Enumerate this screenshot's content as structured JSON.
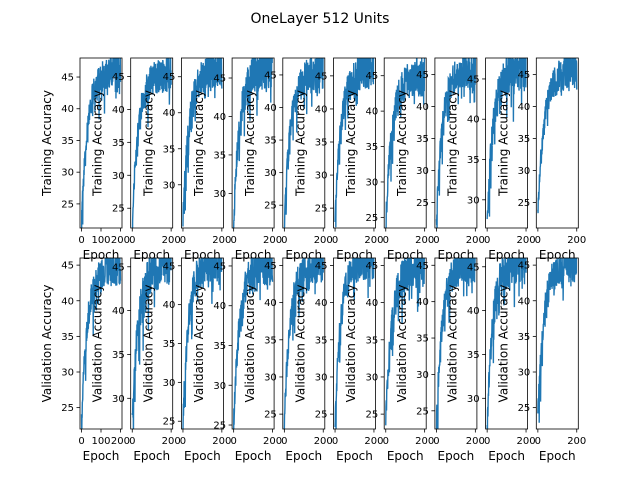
{
  "figure": {
    "title": "OneLayer 512 Units"
  },
  "chart_data": {
    "type": "line",
    "line_color": "#1f77b4",
    "x_ticks": [
      "0",
      "200"
    ],
    "x_ticks_first_panel": [
      "0",
      "100",
      "200"
    ],
    "xlim": [
      -8,
      208
    ],
    "rows": [
      {
        "ylabel": "Training Accuracy",
        "xlabel": "Epoch",
        "panels": [
          {
            "ylim": [
              21.2,
              48.0
            ],
            "yticks": [
              "25",
              "30",
              "35",
              "40",
              "45"
            ],
            "start": 22,
            "end": 44.5,
            "seed": 1
          },
          {
            "ylim": [
              22.0,
              47.8
            ],
            "yticks": [
              "25",
              "30",
              "35",
              "40",
              "45"
            ],
            "start": 23,
            "end": 44.0,
            "seed": 2
          },
          {
            "ylim": [
              24.0,
              47.6
            ],
            "yticks": [
              "30",
              "35",
              "40",
              "45"
            ],
            "start": 25,
            "end": 44.5,
            "seed": 3
          },
          {
            "ylim": [
              25.5,
              47.6
            ],
            "yticks": [
              "25",
              "30",
              "35",
              "40",
              "45"
            ],
            "start": 26,
            "end": 45.0,
            "seed": 4
          },
          {
            "ylim": [
              21.5,
              47.6
            ],
            "yticks": [
              "25",
              "30",
              "35",
              "40",
              "45"
            ],
            "start": 22,
            "end": 44.0,
            "seed": 5
          },
          {
            "ylim": [
              22.0,
              47.7
            ],
            "yticks": [
              "25",
              "30",
              "35",
              "40",
              "45"
            ],
            "start": 23,
            "end": 44.5,
            "seed": 6
          },
          {
            "ylim": [
              23.5,
              47.5
            ],
            "yticks": [
              "25",
              "30",
              "35",
              "40",
              "45"
            ],
            "start": 24,
            "end": 43.5,
            "seed": 7
          },
          {
            "ylim": [
              21.0,
              47.6
            ],
            "yticks": [
              "25",
              "30",
              "35",
              "40",
              "45"
            ],
            "start": 22,
            "end": 44.5,
            "seed": 8
          },
          {
            "ylim": [
              26.5,
              47.6
            ],
            "yticks": [
              "30",
              "35",
              "40",
              "45"
            ],
            "start": 27,
            "end": 45.0,
            "seed": 9
          },
          {
            "ylim": [
              21.0,
              47.6
            ],
            "yticks": [
              "25",
              "30",
              "35",
              "40",
              "45"
            ],
            "start": 23,
            "end": 44.0,
            "seed": 10
          }
        ]
      },
      {
        "ylabel": "Validation Accuracy",
        "xlabel": "Epoch",
        "panels": [
          {
            "ylim": [
              22.0,
              46.0
            ],
            "yticks": [
              "25",
              "30",
              "35",
              "40",
              "45"
            ],
            "start": 23,
            "end": 43.5,
            "seed": 11
          },
          {
            "ylim": [
              26.5,
              46.0
            ],
            "yticks": [
              "30",
              "35",
              "40",
              "45"
            ],
            "start": 27,
            "end": 44.0,
            "seed": 12
          },
          {
            "ylim": [
              24.0,
              46.0
            ],
            "yticks": [
              "25",
              "30",
              "35",
              "40",
              "45"
            ],
            "start": 25,
            "end": 44.5,
            "seed": 13
          },
          {
            "ylim": [
              24.5,
              46.0
            ],
            "yticks": [
              "25",
              "30",
              "35",
              "40",
              "45"
            ],
            "start": 25,
            "end": 44.0,
            "seed": 14
          },
          {
            "ylim": [
              23.0,
              46.0
            ],
            "yticks": [
              "25",
              "30",
              "35",
              "40",
              "45"
            ],
            "start": 24,
            "end": 44.0,
            "seed": 15
          },
          {
            "ylim": [
              23.0,
              46.0
            ],
            "yticks": [
              "25",
              "30",
              "35",
              "40",
              "45"
            ],
            "start": 24,
            "end": 44.5,
            "seed": 16
          },
          {
            "ylim": [
              23.0,
              46.0
            ],
            "yticks": [
              "25",
              "30",
              "35",
              "40",
              "45"
            ],
            "start": 24,
            "end": 43.5,
            "seed": 17
          },
          {
            "ylim": [
              22.5,
              46.0
            ],
            "yticks": [
              "25",
              "30",
              "35",
              "40",
              "45"
            ],
            "start": 23,
            "end": 44.0,
            "seed": 18
          },
          {
            "ylim": [
              26.5,
              46.0
            ],
            "yticks": [
              "30",
              "35",
              "40",
              "45"
            ],
            "start": 27,
            "end": 44.5,
            "seed": 19
          },
          {
            "ylim": [
              22.0,
              46.0
            ],
            "yticks": [
              "25",
              "30",
              "35",
              "40",
              "45"
            ],
            "start": 24,
            "end": 44.0,
            "seed": 20
          }
        ]
      }
    ]
  }
}
